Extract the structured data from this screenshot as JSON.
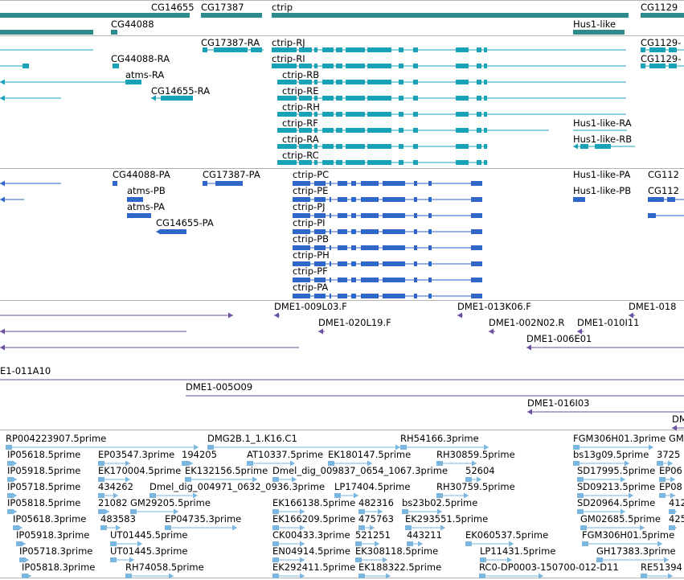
{
  "colors": {
    "gene": "#2e8b8b",
    "mrna": "#17a2b8",
    "protein": "#2f66c8",
    "clone": "#6a4fa3",
    "est": "#7ab6e0",
    "separator": "#b4b4b4"
  },
  "tracks": {
    "genes": [
      {
        "label": "CG14655"
      },
      {
        "label": "CG17387"
      },
      {
        "label": "ctrip"
      },
      {
        "label": "CG1129"
      },
      {
        "label": "CG44088"
      },
      {
        "label": "Hus1-like"
      }
    ],
    "transcripts": [
      {
        "label": "CG17387-RA"
      },
      {
        "label": "ctrip-RJ"
      },
      {
        "label": "CG1129-"
      },
      {
        "label": "CG44088-RA"
      },
      {
        "label": "ctrip-RI"
      },
      {
        "label": "CG1129-"
      },
      {
        "label": "atms-RA"
      },
      {
        "label": "ctrip-RB"
      },
      {
        "label": "CG14655-RA"
      },
      {
        "label": "ctrip-RE"
      },
      {
        "label": "ctrip-RH"
      },
      {
        "label": "ctrip-RF"
      },
      {
        "label": "Hus1-like-RA"
      },
      {
        "label": "ctrip-RA"
      },
      {
        "label": "Hus1-like-RB"
      },
      {
        "label": "ctrip-RC"
      }
    ],
    "proteins": [
      {
        "label": "CG44088-PA"
      },
      {
        "label": "CG17387-PA"
      },
      {
        "label": "ctrip-PC"
      },
      {
        "label": "Hus1-like-PA"
      },
      {
        "label": "CG112"
      },
      {
        "label": "atms-PB"
      },
      {
        "label": "ctrip-PE"
      },
      {
        "label": "Hus1-like-PB"
      },
      {
        "label": "CG112"
      },
      {
        "label": "atms-PA"
      },
      {
        "label": "ctrip-PJ"
      },
      {
        "label": "CG14655-PA"
      },
      {
        "label": "ctrip-PI"
      },
      {
        "label": "ctrip-PB"
      },
      {
        "label": "ctrip-PH"
      },
      {
        "label": "ctrip-PF"
      },
      {
        "label": "ctrip-PA"
      }
    ],
    "clones": [
      {
        "label": "DME1-009L03.F"
      },
      {
        "label": "DME1-013K06.F"
      },
      {
        "label": "DME1-018"
      },
      {
        "label": "DME1-020L19.F"
      },
      {
        "label": "DME1-002N02.R"
      },
      {
        "label": "DME1-010I11"
      },
      {
        "label": "DME1-006E01"
      },
      {
        "label": "E1-011A10"
      },
      {
        "label": "DME1-005O09"
      },
      {
        "label": "DME1-016I03"
      },
      {
        "label": "DME"
      }
    ],
    "ests": [
      {
        "label": "RP004223907.5prime"
      },
      {
        "label": "DMG2B.1_1.K16.C1"
      },
      {
        "label": "RH54166.3prime"
      },
      {
        "label": "FGM306H01.3prime"
      },
      {
        "label": "GM"
      },
      {
        "label": "IP05618.5prime"
      },
      {
        "label": "EP03547.3prime"
      },
      {
        "label": "194205"
      },
      {
        "label": "AT10337.5prime"
      },
      {
        "label": "EK180147.5prime"
      },
      {
        "label": "RH30859.5prime"
      },
      {
        "label": "bs13g09.5prime"
      },
      {
        "label": "3725"
      },
      {
        "label": "IP05918.5prime"
      },
      {
        "label": "EK170004.5prime"
      },
      {
        "label": "EK132156.5prime"
      },
      {
        "label": "Dmel_dig_009837_0654_1067.3prime"
      },
      {
        "label": "52604"
      },
      {
        "label": "SD17995.5prime"
      },
      {
        "label": "EP06"
      },
      {
        "label": "IP05718.5prime"
      },
      {
        "label": "434262"
      },
      {
        "label": "Dmel_dig_004971_0632_0936.3prime"
      },
      {
        "label": "LP17404.5prime"
      },
      {
        "label": "RH30759.5prime"
      },
      {
        "label": "SD09213.5prime"
      },
      {
        "label": "EP08"
      },
      {
        "label": "IP05818.5prime"
      },
      {
        "label": "21082"
      },
      {
        "label": "GM29205.5prime"
      },
      {
        "label": "EK166138.5prime"
      },
      {
        "label": "482316"
      },
      {
        "label": "bs23b02.5prime"
      },
      {
        "label": "SD20964.5prime"
      },
      {
        "label": "412"
      },
      {
        "label": "IP05618.3prime"
      },
      {
        "label": "483583"
      },
      {
        "label": "EP04735.3prime"
      },
      {
        "label": "EK166209.5prime"
      },
      {
        "label": "475763"
      },
      {
        "label": "EK293551.5prime"
      },
      {
        "label": "GM02685.5prime"
      },
      {
        "label": "425"
      },
      {
        "label": "IP05918.3prime"
      },
      {
        "label": "UT01445.5prime"
      },
      {
        "label": "CK00433.3prime"
      },
      {
        "label": "521251"
      },
      {
        "label": "443211"
      },
      {
        "label": "EK060537.5prime"
      },
      {
        "label": "FGM306H01.5prime"
      },
      {
        "label": "IP05718.3prime"
      },
      {
        "label": "UT01445.3prime"
      },
      {
        "label": "EN04914.5prime"
      },
      {
        "label": "EK308118.5prime"
      },
      {
        "label": "LP11431.5prime"
      },
      {
        "label": "GH17383.3prime"
      },
      {
        "label": "IP05818.3prime"
      },
      {
        "label": "RH74058.5prime"
      },
      {
        "label": "EK292411.5prime"
      },
      {
        "label": "EK188322.5prime"
      },
      {
        "label": "RC0-DP0003-150700-012-D11"
      },
      {
        "label": "RE51394"
      }
    ]
  }
}
